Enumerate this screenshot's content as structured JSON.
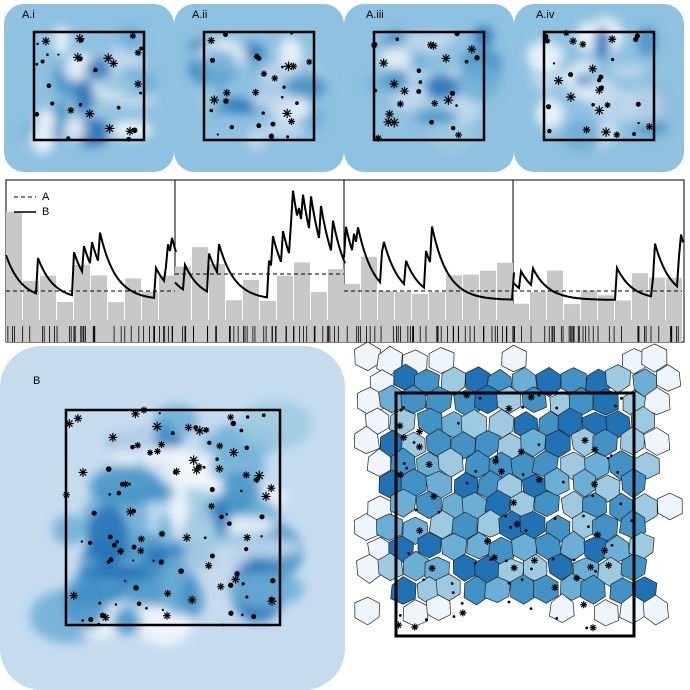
{
  "panels": {
    "a_i": "A.i",
    "a_ii": "A.ii",
    "a_iii": "A.iii",
    "a_iv": "A.iv",
    "b": "B"
  },
  "legend": {
    "dashed": "A",
    "solid": "B"
  }
}
